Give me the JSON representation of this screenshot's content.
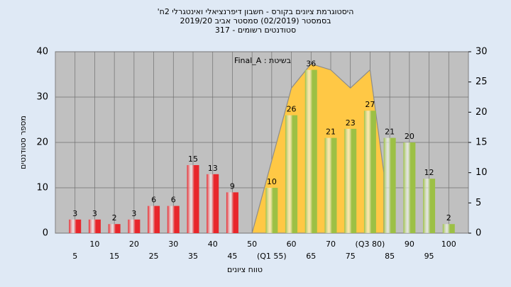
{
  "chart_data": {
    "type": "bar",
    "title_lines": [
      "היסטוגרמת ציונים בקורס - חשבון דיפרנציאלי ואינטגרלי 2ח'",
      "בסמסטר (02/2019) סמסטר אביב 2019/20",
      "סטודנטים רשומים - 317"
    ],
    "annotation": "בשיטת : Final_A",
    "ylabel": "מספר סטודנטים",
    "xlabel": "טווח ציונים",
    "x": [
      5,
      10,
      15,
      20,
      25,
      30,
      35,
      40,
      45,
      50,
      55,
      60,
      65,
      70,
      75,
      80,
      85,
      90,
      95,
      100
    ],
    "series": [
      {
        "color": "#e8262b",
        "values": [
          3,
          3,
          2,
          3,
          6,
          6,
          15,
          13,
          9,
          null,
          null,
          null,
          null,
          null,
          null,
          null,
          null,
          null,
          null,
          null
        ]
      },
      {
        "color": "#9cc045",
        "values": [
          null,
          null,
          null,
          null,
          null,
          null,
          null,
          null,
          null,
          null,
          10,
          26,
          36,
          21,
          23,
          27,
          21,
          20,
          12,
          2
        ]
      },
      {
        "type": "area",
        "axis": "y2",
        "color": "#ffc845",
        "x": [
          50,
          55,
          60,
          65,
          70,
          75,
          80,
          83.5
        ],
        "values": [
          0,
          12,
          24,
          28,
          27,
          24,
          27,
          10
        ]
      }
    ],
    "xlim": [
      0,
      105
    ],
    "xticks": [
      5,
      10,
      15,
      20,
      25,
      30,
      35,
      40,
      45,
      50,
      {
        "value": 55,
        "label": "(Q1 55)"
      },
      60,
      65,
      70,
      75,
      {
        "value": 80,
        "label": "(Q3 80)"
      },
      85,
      90,
      95,
      100
    ],
    "ylim": [
      0,
      40
    ],
    "yticks": [
      0,
      10,
      20,
      30,
      40
    ],
    "y2lim": [
      0,
      30
    ],
    "y2ticks": [
      0,
      5,
      10,
      15,
      20,
      25,
      30
    ],
    "grid": true,
    "plot_color": "#c0c0c0"
  }
}
